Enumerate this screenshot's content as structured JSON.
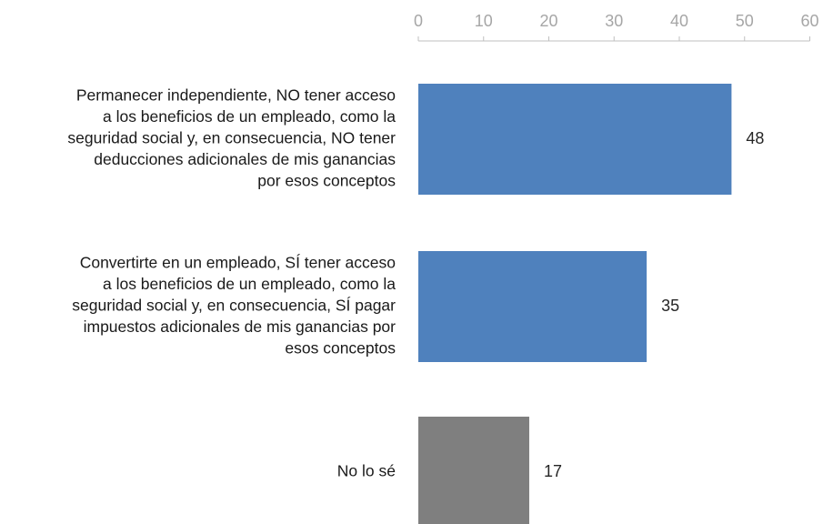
{
  "chart_data": {
    "type": "bar",
    "orientation": "horizontal",
    "categories": [
      [
        "Permanecer independiente, NO tener acceso",
        "a los beneficios de un empleado, como la",
        "seguridad social y, en consecuencia, NO tener",
        "deducciones adicionales de mis ganancias",
        "por esos conceptos"
      ],
      [
        "Convertirte en un empleado, SÍ tener acceso",
        "a los beneficios de un empleado, como la",
        "seguridad social y, en consecuencia, SÍ pagar",
        "impuestos adicionales de mis ganancias por",
        "esos conceptos"
      ],
      [
        "No lo sé"
      ]
    ],
    "values": [
      48,
      35,
      17
    ],
    "value_labels": [
      "48",
      "35",
      "17"
    ],
    "colors": [
      "#4f81bd",
      "#4f81bd",
      "#7f7f7f"
    ],
    "xlim": [
      0,
      60
    ],
    "ticks": [
      "0",
      "10",
      "20",
      "30",
      "40",
      "50",
      "60"
    ],
    "axis_position": "top",
    "grid": false,
    "title": "",
    "xlabel": "",
    "ylabel": ""
  }
}
